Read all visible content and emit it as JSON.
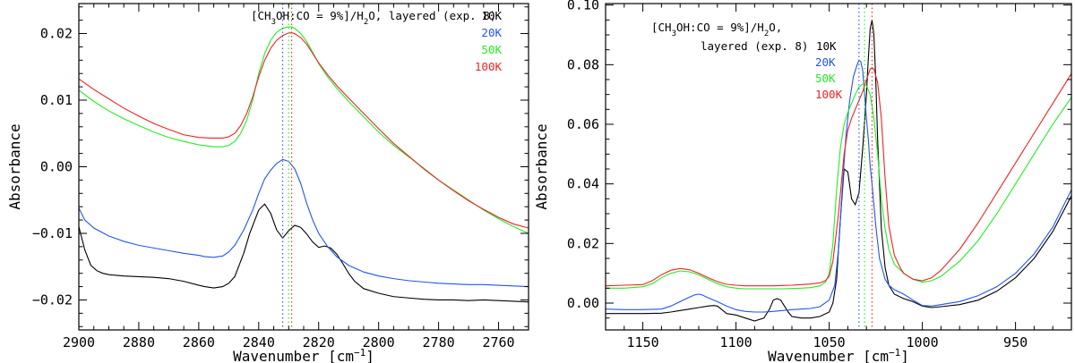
{
  "colors": {
    "10K": "#000000",
    "20K": "#2255ee",
    "50K": "#22ee22",
    "100K": "#ee2222"
  },
  "chart_data": [
    {
      "type": "line",
      "xlabel": "Wavenumber [cm",
      "xlabel_sup": "−1",
      "xlabel_end": "]",
      "ylabel": "Absorbance",
      "xlim": [
        2900,
        2750
      ],
      "ylim": [
        -0.0245,
        0.0245
      ],
      "xticks": [
        2900,
        2880,
        2860,
        2840,
        2820,
        2800,
        2780,
        2760
      ],
      "xticks_minor_step": 5,
      "yticks": [
        -0.02,
        -0.01,
        0.0,
        0.01,
        0.02
      ],
      "ytick_labels": [
        "−0.02",
        "−0.01",
        "0.00",
        "0.01",
        "0.02"
      ],
      "yticks_minor_step": 0.002,
      "legend": {
        "title": "[CH3OH:CO = 9%]/H2O, layered (exp. 8)",
        "title_parts": {
          "a": "[CH",
          "b": "3",
          "c": "OH:CO = 9%]/H",
          "d": "2",
          "e": "O, layered (exp. 8)"
        },
        "entries": [
          "10K",
          "20K",
          "50K",
          "100K"
        ],
        "position": "top-right"
      },
      "markers": [
        {
          "x": 2832,
          "color": "#2255ee"
        },
        {
          "x": 2830,
          "color": "#22ee22"
        },
        {
          "x": 2829,
          "color": "#ee2222"
        }
      ],
      "series": [
        {
          "name": "10K",
          "x": [
            2900,
            2898,
            2896,
            2894,
            2892,
            2890,
            2885,
            2880,
            2875,
            2870,
            2865,
            2860,
            2858,
            2855,
            2852,
            2850,
            2848,
            2845,
            2843,
            2840,
            2838,
            2836,
            2834,
            2832,
            2830,
            2828,
            2826,
            2824,
            2822,
            2820,
            2818,
            2816,
            2814,
            2812,
            2810,
            2808,
            2805,
            2800,
            2795,
            2790,
            2785,
            2780,
            2775,
            2770,
            2765,
            2760,
            2755,
            2750
          ],
          "y": [
            -0.009,
            -0.0125,
            -0.0148,
            -0.0156,
            -0.016,
            -0.0162,
            -0.0164,
            -0.0165,
            -0.0166,
            -0.0168,
            -0.0172,
            -0.0178,
            -0.018,
            -0.0182,
            -0.018,
            -0.0175,
            -0.0165,
            -0.013,
            -0.01,
            -0.0065,
            -0.0056,
            -0.007,
            -0.0095,
            -0.0107,
            -0.0096,
            -0.0088,
            -0.0091,
            -0.0101,
            -0.0113,
            -0.0121,
            -0.0119,
            -0.0122,
            -0.0131,
            -0.0145,
            -0.016,
            -0.0172,
            -0.0183,
            -0.019,
            -0.0195,
            -0.0197,
            -0.0199,
            -0.02,
            -0.02,
            -0.0201,
            -0.02,
            -0.0201,
            -0.0202,
            -0.0203
          ]
        },
        {
          "name": "20K",
          "x": [
            2900,
            2898,
            2895,
            2890,
            2885,
            2880,
            2875,
            2870,
            2865,
            2860,
            2858,
            2855,
            2852,
            2850,
            2848,
            2845,
            2842,
            2840,
            2838,
            2836,
            2834,
            2832,
            2830,
            2828,
            2826,
            2824,
            2822,
            2820,
            2817,
            2814,
            2810,
            2805,
            2800,
            2795,
            2790,
            2785,
            2780,
            2775,
            2770,
            2765,
            2760,
            2755,
            2750
          ],
          "y": [
            -0.0062,
            -0.008,
            -0.0092,
            -0.0104,
            -0.0112,
            -0.0118,
            -0.0122,
            -0.0126,
            -0.013,
            -0.0133,
            -0.0135,
            -0.0136,
            -0.0134,
            -0.0128,
            -0.0118,
            -0.0095,
            -0.0065,
            -0.004,
            -0.0018,
            -0.0005,
            0.0005,
            0.0011,
            0.0008,
            -0.0003,
            -0.0025,
            -0.0055,
            -0.008,
            -0.01,
            -0.012,
            -0.0135,
            -0.0148,
            -0.0158,
            -0.0164,
            -0.0168,
            -0.0171,
            -0.0173,
            -0.0175,
            -0.0176,
            -0.0177,
            -0.0177,
            -0.0178,
            -0.0179,
            -0.018
          ]
        },
        {
          "name": "50K",
          "x": [
            2900,
            2895,
            2890,
            2885,
            2880,
            2875,
            2870,
            2865,
            2860,
            2855,
            2852,
            2850,
            2848,
            2846,
            2844,
            2842,
            2840,
            2838,
            2836,
            2834,
            2832,
            2830,
            2829,
            2828,
            2826,
            2824,
            2822,
            2820,
            2817,
            2814,
            2810,
            2805,
            2800,
            2795,
            2790,
            2785,
            2780,
            2775,
            2770,
            2765,
            2760,
            2755,
            2750
          ],
          "y": [
            0.0115,
            0.0098,
            0.0084,
            0.0072,
            0.0062,
            0.0052,
            0.0044,
            0.0038,
            0.0033,
            0.003,
            0.003,
            0.0032,
            0.0038,
            0.005,
            0.007,
            0.01,
            0.014,
            0.017,
            0.019,
            0.0202,
            0.0208,
            0.021,
            0.021,
            0.0208,
            0.02,
            0.0188,
            0.0172,
            0.0155,
            0.0135,
            0.0118,
            0.0098,
            0.0075,
            0.0052,
            0.0032,
            0.0015,
            -0.0002,
            -0.002,
            -0.0035,
            -0.005,
            -0.0065,
            -0.0078,
            -0.009,
            -0.01
          ]
        },
        {
          "name": "100K",
          "x": [
            2900,
            2895,
            2890,
            2885,
            2880,
            2875,
            2870,
            2865,
            2860,
            2856,
            2852,
            2850,
            2848,
            2846,
            2844,
            2842,
            2840,
            2838,
            2836,
            2834,
            2832,
            2830,
            2829,
            2828,
            2826,
            2824,
            2822,
            2820,
            2817,
            2814,
            2810,
            2805,
            2800,
            2795,
            2790,
            2785,
            2780,
            2775,
            2770,
            2765,
            2760,
            2755,
            2750
          ],
          "y": [
            0.0132,
            0.0116,
            0.0102,
            0.0088,
            0.0076,
            0.0065,
            0.0056,
            0.0048,
            0.0044,
            0.0043,
            0.0043,
            0.0045,
            0.005,
            0.0062,
            0.008,
            0.0105,
            0.0135,
            0.016,
            0.0178,
            0.019,
            0.0197,
            0.0201,
            0.0201,
            0.02,
            0.0194,
            0.0184,
            0.017,
            0.0156,
            0.0138,
            0.0122,
            0.0103,
            0.008,
            0.0057,
            0.0035,
            0.0016,
            -0.0003,
            -0.002,
            -0.0036,
            -0.0051,
            -0.0064,
            -0.0076,
            -0.0086,
            -0.0092
          ]
        }
      ]
    },
    {
      "type": "line",
      "xlabel": "Wavenumber [cm",
      "xlabel_sup": "−1",
      "xlabel_end": "]",
      "ylabel": "Absorbance",
      "xlim": [
        1170,
        920
      ],
      "ylim": [
        -0.009,
        0.1005
      ],
      "xticks": [
        1150,
        1100,
        1050,
        1000,
        950
      ],
      "xticks_minor_step": 10,
      "yticks": [
        0.0,
        0.02,
        0.04,
        0.06,
        0.08,
        0.1
      ],
      "ytick_labels": [
        "0.00",
        "0.02",
        "0.04",
        "0.06",
        "0.08",
        "0.10"
      ],
      "yticks_minor_step": 0.005,
      "legend": {
        "title_line1": "[CH3OH:CO = 9%]/H2O,",
        "title_parts": {
          "a": "[CH",
          "b": "3",
          "c": "OH:CO = 9%]/H",
          "d": "2",
          "e": "O,"
        },
        "title_line2": "layered (exp. 8)",
        "entries": [
          "10K",
          "20K",
          "50K",
          "100K"
        ],
        "position": "top-left"
      },
      "markers": [
        {
          "x": 1034,
          "color": "#2255ee"
        },
        {
          "x": 1031,
          "color": "#22ee22"
        },
        {
          "x": 1027,
          "color": "#ee2222"
        }
      ],
      "series": [
        {
          "name": "10K",
          "x": [
            1170,
            1160,
            1150,
            1140,
            1135,
            1130,
            1125,
            1120,
            1115,
            1112,
            1110,
            1107,
            1105,
            1100,
            1095,
            1090,
            1085,
            1082,
            1080,
            1078,
            1076,
            1074,
            1072,
            1070,
            1065,
            1060,
            1055,
            1050,
            1048,
            1046,
            1044,
            1042,
            1040,
            1038,
            1036,
            1034,
            1032,
            1030,
            1029,
            1028,
            1027,
            1026,
            1025,
            1024,
            1022,
            1020,
            1018,
            1015,
            1010,
            1005,
            1000,
            995,
            990,
            980,
            970,
            960,
            950,
            940,
            930,
            920
          ],
          "y": [
            -0.0035,
            -0.0035,
            -0.0035,
            -0.0034,
            -0.003,
            -0.0025,
            -0.002,
            -0.0015,
            -0.001,
            -0.0008,
            -0.001,
            -0.0025,
            -0.0035,
            -0.004,
            -0.005,
            -0.006,
            -0.005,
            -0.002,
            0.001,
            0.0015,
            0.001,
            -0.001,
            -0.003,
            -0.0045,
            -0.005,
            -0.005,
            -0.0045,
            -0.003,
            0.0,
            0.008,
            0.028,
            0.045,
            0.044,
            0.035,
            0.033,
            0.037,
            0.052,
            0.07,
            0.082,
            0.092,
            0.095,
            0.09,
            0.075,
            0.055,
            0.025,
            0.012,
            0.006,
            0.003,
            0.0015,
            0.0005,
            -0.001,
            -0.0015,
            -0.0012,
            -0.0005,
            0.001,
            0.004,
            0.0085,
            0.015,
            0.024,
            0.036
          ]
        },
        {
          "name": "20K",
          "x": [
            1170,
            1160,
            1150,
            1140,
            1135,
            1130,
            1125,
            1122,
            1120,
            1118,
            1115,
            1110,
            1105,
            1100,
            1095,
            1090,
            1085,
            1080,
            1075,
            1070,
            1065,
            1060,
            1055,
            1050,
            1047,
            1045,
            1043,
            1041,
            1039,
            1037,
            1035,
            1034,
            1033,
            1032,
            1031,
            1030,
            1029,
            1028,
            1027,
            1025,
            1023,
            1020,
            1018,
            1015,
            1010,
            1005,
            1000,
            995,
            990,
            980,
            970,
            960,
            950,
            940,
            930,
            920
          ],
          "y": [
            -0.002,
            -0.0022,
            -0.0022,
            -0.002,
            -0.001,
            0.0005,
            0.002,
            0.0028,
            0.003,
            0.0027,
            0.0018,
            0.0005,
            -0.001,
            -0.0022,
            -0.0028,
            -0.003,
            -0.003,
            -0.0028,
            -0.0025,
            -0.0022,
            -0.002,
            -0.0018,
            -0.0012,
            0.001,
            0.006,
            0.018,
            0.038,
            0.056,
            0.068,
            0.076,
            0.08,
            0.0815,
            0.081,
            0.078,
            0.07,
            0.062,
            0.055,
            0.046,
            0.04,
            0.026,
            0.015,
            0.008,
            0.006,
            0.0045,
            0.003,
            0.001,
            -0.0008,
            -0.001,
            -0.0005,
            0.0005,
            0.0025,
            0.0055,
            0.01,
            0.0165,
            0.0255,
            0.038
          ]
        },
        {
          "name": "50K",
          "x": [
            1170,
            1160,
            1150,
            1145,
            1140,
            1135,
            1130,
            1125,
            1120,
            1115,
            1110,
            1105,
            1100,
            1095,
            1090,
            1085,
            1080,
            1075,
            1070,
            1065,
            1060,
            1055,
            1052,
            1050,
            1048,
            1046,
            1044,
            1042,
            1040,
            1038,
            1036,
            1034,
            1032,
            1031,
            1030,
            1028,
            1026,
            1024,
            1022,
            1020,
            1018,
            1015,
            1010,
            1005,
            1000,
            995,
            990,
            980,
            970,
            960,
            950,
            940,
            930,
            920
          ],
          "y": [
            0.005,
            0.005,
            0.0055,
            0.0065,
            0.0085,
            0.01,
            0.0108,
            0.0105,
            0.0095,
            0.008,
            0.0065,
            0.0055,
            0.005,
            0.0048,
            0.0048,
            0.0048,
            0.0048,
            0.0048,
            0.0049,
            0.005,
            0.0052,
            0.0058,
            0.007,
            0.01,
            0.02,
            0.038,
            0.052,
            0.06,
            0.064,
            0.067,
            0.07,
            0.0725,
            0.0735,
            0.0735,
            0.073,
            0.07,
            0.062,
            0.05,
            0.035,
            0.025,
            0.018,
            0.013,
            0.01,
            0.008,
            0.007,
            0.0075,
            0.009,
            0.014,
            0.021,
            0.03,
            0.04,
            0.05,
            0.06,
            0.069
          ]
        },
        {
          "name": "100K",
          "x": [
            1170,
            1160,
            1150,
            1145,
            1140,
            1135,
            1130,
            1125,
            1120,
            1115,
            1110,
            1105,
            1100,
            1095,
            1090,
            1085,
            1080,
            1075,
            1070,
            1065,
            1060,
            1055,
            1052,
            1050,
            1048,
            1045,
            1042,
            1040,
            1038,
            1036,
            1034,
            1032,
            1030,
            1028,
            1027,
            1026,
            1024,
            1022,
            1020,
            1018,
            1015,
            1012,
            1010,
            1005,
            1000,
            995,
            990,
            980,
            970,
            960,
            950,
            940,
            930,
            920
          ],
          "y": [
            0.0058,
            0.006,
            0.0062,
            0.0075,
            0.0095,
            0.011,
            0.0116,
            0.0112,
            0.01,
            0.0085,
            0.0072,
            0.0063,
            0.006,
            0.0058,
            0.0058,
            0.0058,
            0.0058,
            0.0059,
            0.006,
            0.0062,
            0.0064,
            0.0068,
            0.0075,
            0.009,
            0.014,
            0.03,
            0.05,
            0.058,
            0.062,
            0.065,
            0.068,
            0.071,
            0.075,
            0.0785,
            0.079,
            0.0785,
            0.074,
            0.062,
            0.042,
            0.026,
            0.016,
            0.012,
            0.01,
            0.008,
            0.0075,
            0.0085,
            0.011,
            0.018,
            0.027,
            0.037,
            0.047,
            0.057,
            0.067,
            0.077
          ]
        }
      ]
    }
  ]
}
